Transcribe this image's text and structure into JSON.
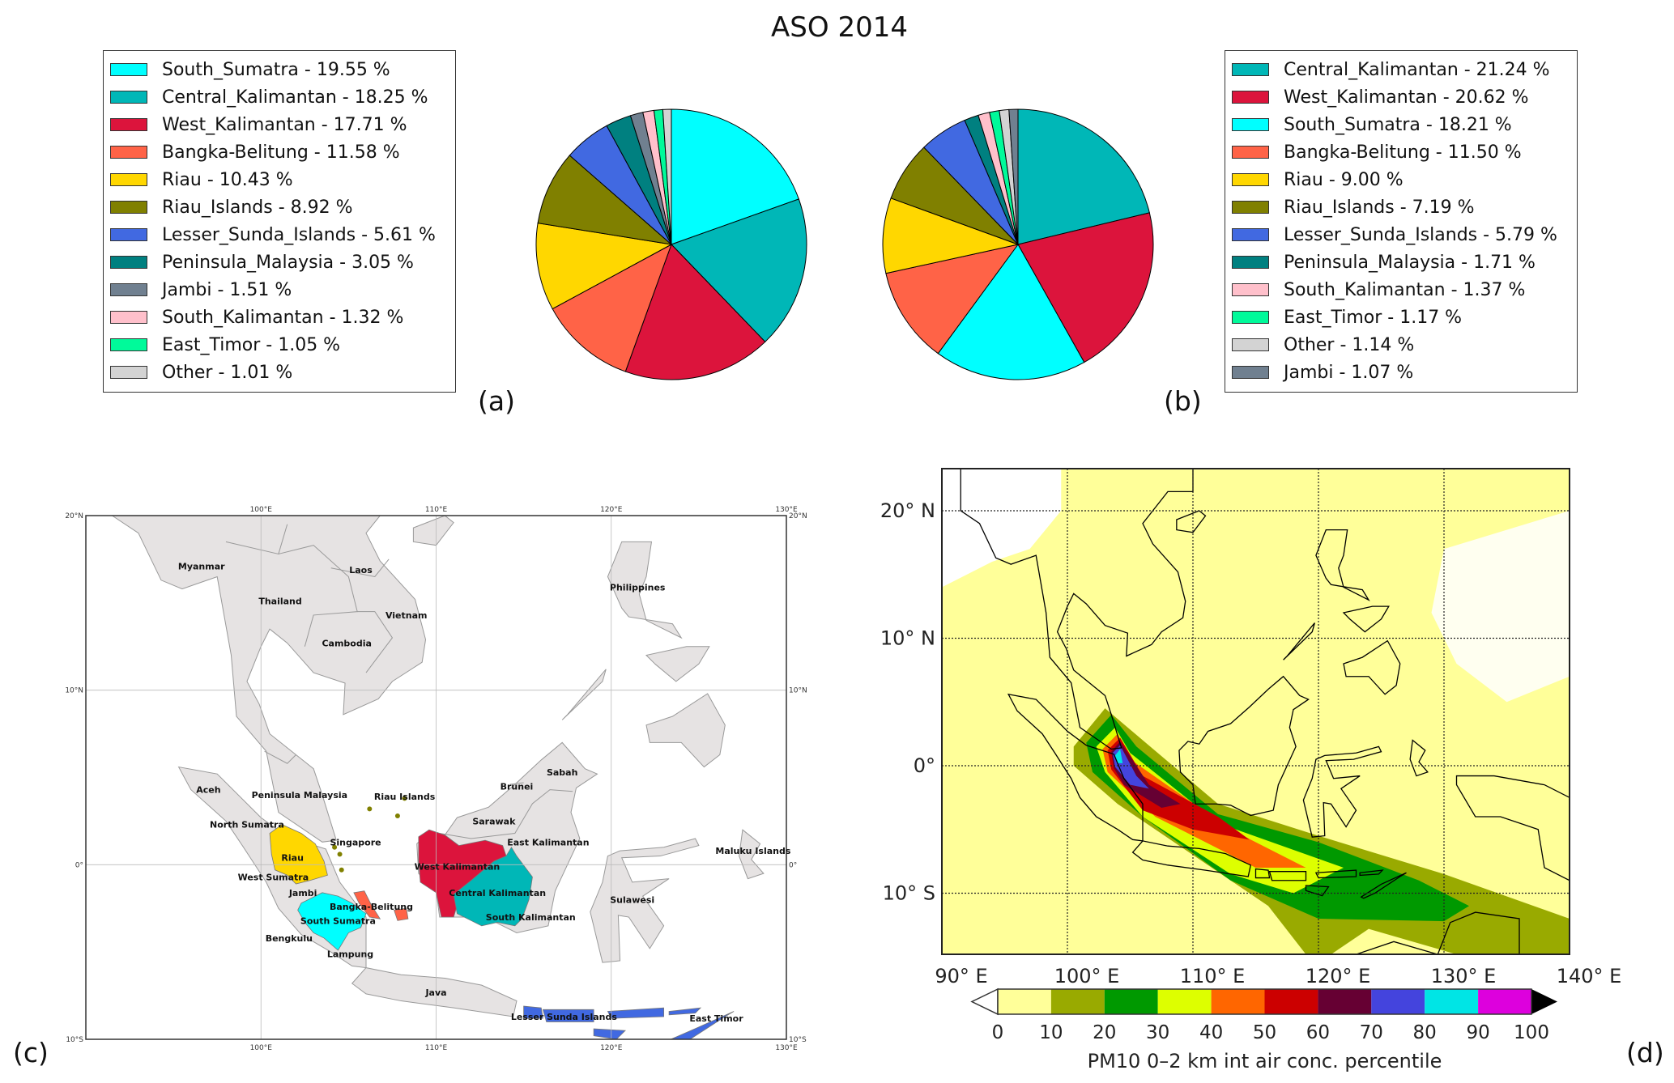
{
  "title": "ASO 2014",
  "panel_labels": {
    "a": "(a)",
    "b": "(b)",
    "c": "(c)",
    "d": "(d)"
  },
  "chart_data": [
    {
      "type": "pie",
      "panel": "a",
      "title": "ASO 2014",
      "legend_placement": "left",
      "start": "top, clockwise",
      "slices": [
        {
          "label": "South_Sumatra - 19.55 %",
          "name": "South_Sumatra",
          "value": 19.55,
          "color": "#00ffff"
        },
        {
          "label": "Central_Kalimantan - 18.25 %",
          "name": "Central_Kalimantan",
          "value": 18.25,
          "color": "#00b7b7"
        },
        {
          "label": "West_Kalimantan - 17.71 %",
          "name": "West_Kalimantan",
          "value": 17.71,
          "color": "#dc143c"
        },
        {
          "label": "Bangka-Belitung - 11.58 %",
          "name": "Bangka-Belitung",
          "value": 11.58,
          "color": "#ff6347"
        },
        {
          "label": "Riau - 10.43 %",
          "name": "Riau",
          "value": 10.43,
          "color": "#ffd700"
        },
        {
          "label": "Riau_Islands - 8.92 %",
          "name": "Riau_Islands",
          "value": 8.92,
          "color": "#808000"
        },
        {
          "label": "Lesser_Sunda_Islands - 5.61 %",
          "name": "Lesser_Sunda_Islands",
          "value": 5.61,
          "color": "#4169e1"
        },
        {
          "label": "Peninsula_Malaysia - 3.05 %",
          "name": "Peninsula_Malaysia",
          "value": 3.05,
          "color": "#008080"
        },
        {
          "label": "Jambi - 1.51 %",
          "name": "Jambi",
          "value": 1.51,
          "color": "#708090"
        },
        {
          "label": "South_Kalimantan - 1.32 %",
          "name": "South_Kalimantan",
          "value": 1.32,
          "color": "#ffc0cb"
        },
        {
          "label": "East_Timor - 1.05 %",
          "name": "East_Timor",
          "value": 1.05,
          "color": "#00fa9a"
        },
        {
          "label": "Other - 1.01 %",
          "name": "Other",
          "value": 1.01,
          "color": "#d3d3d3"
        }
      ]
    },
    {
      "type": "pie",
      "panel": "b",
      "legend_placement": "right",
      "start": "top, clockwise",
      "slices": [
        {
          "label": "Central_Kalimantan - 21.24 %",
          "name": "Central_Kalimantan",
          "value": 21.24,
          "color": "#00b7b7"
        },
        {
          "label": "West_Kalimantan - 20.62 %",
          "name": "West_Kalimantan",
          "value": 20.62,
          "color": "#dc143c"
        },
        {
          "label": "South_Sumatra - 18.21 %",
          "name": "South_Sumatra",
          "value": 18.21,
          "color": "#00ffff"
        },
        {
          "label": "Bangka-Belitung - 11.50 %",
          "name": "Bangka-Belitung",
          "value": 11.5,
          "color": "#ff6347"
        },
        {
          "label": "Riau - 9.00 %",
          "name": "Riau",
          "value": 9.0,
          "color": "#ffd700"
        },
        {
          "label": "Riau_Islands - 7.19 %",
          "name": "Riau_Islands",
          "value": 7.19,
          "color": "#808000"
        },
        {
          "label": "Lesser_Sunda_Islands - 5.79 %",
          "name": "Lesser_Sunda_Islands",
          "value": 5.79,
          "color": "#4169e1"
        },
        {
          "label": "Peninsula_Malaysia - 1.71 %",
          "name": "Peninsula_Malaysia",
          "value": 1.71,
          "color": "#008080"
        },
        {
          "label": "South_Kalimantan - 1.37 %",
          "name": "South_Kalimantan",
          "value": 1.37,
          "color": "#ffc0cb"
        },
        {
          "label": "East_Timor - 1.17 %",
          "name": "East_Timor",
          "value": 1.17,
          "color": "#00fa9a"
        },
        {
          "label": "Other - 1.14 %",
          "name": "Other",
          "value": 1.14,
          "color": "#d3d3d3"
        },
        {
          "label": "Jambi - 1.07 %",
          "name": "Jambi",
          "value": 1.07,
          "color": "#708090"
        }
      ]
    },
    {
      "type": "map",
      "panel": "c",
      "lon_range": [
        90,
        130
      ],
      "lat_range": [
        -10,
        20
      ],
      "lon_ticks": [
        "100°E",
        "110°E",
        "120°E",
        "130°E"
      ],
      "lat_ticks": [
        "20°N",
        "10°N",
        "0°",
        "10°S"
      ],
      "place_labels": [
        "Myanmar",
        "Laos",
        "Thailand",
        "Vietnam",
        "Cambodia",
        "Philippines",
        "Sabah",
        "Brunei",
        "Aceh",
        "Peninsula Malaysia",
        "Riau Islands",
        "Sarawak",
        "North Sumatra",
        "Singapore",
        "East Kalimantan",
        "Maluku Islands",
        "Riau",
        "West Kalimantan",
        "West Sumatra",
        "Jambi",
        "Central Kalimantan",
        "Sulawesi",
        "Bangka-Belitung",
        "South Sumatra",
        "South Kalimantan",
        "Bengkulu",
        "Lampung",
        "Java",
        "Lesser Sunda Islands",
        "East Timor"
      ]
    },
    {
      "type": "heatmap",
      "panel": "d",
      "lon_range": [
        90,
        140
      ],
      "lat_range": [
        -15,
        23
      ],
      "lon_ticks": [
        "90° E",
        "100° E",
        "110° E",
        "120° E",
        "130° E",
        "140° E"
      ],
      "lat_ticks": [
        "20° N",
        "10° N",
        "0°",
        "10° S"
      ],
      "colorbar": {
        "label": "PM10 0–2 km int air conc. percentile",
        "ticks": [
          "0",
          "10",
          "20",
          "30",
          "40",
          "50",
          "60",
          "70",
          "80",
          "90",
          "100"
        ],
        "colors": [
          "#ffff99",
          "#99aa00",
          "#009900",
          "#ddff00",
          "#ff6600",
          "#cc0000",
          "#660033",
          "#4444dd",
          "#00e5e5",
          "#dd00dd"
        ],
        "under_color": "#ffffff",
        "over_color": "#000000"
      }
    }
  ]
}
